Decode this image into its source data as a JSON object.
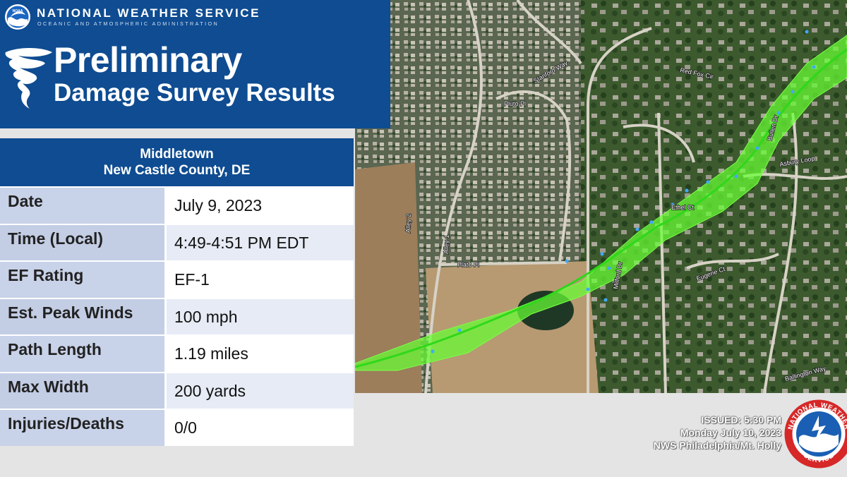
{
  "header": {
    "org_name": "NATIONAL WEATHER SERVICE",
    "org_sub": "OCEANIC AND ATMOSPHERIC ADMINISTRATION",
    "noaa_logo_text": "NOAA",
    "title_line1": "Preliminary",
    "title_line2": "Damage Survey Results"
  },
  "location": {
    "line1": "Middletown",
    "line2": "New Castle County, DE"
  },
  "details": [
    {
      "label": "Date",
      "value": "July 9, 2023"
    },
    {
      "label": "Time (Local)",
      "value": "4:49-4:51 PM EDT"
    },
    {
      "label": "EF Rating",
      "value": "EF-1"
    },
    {
      "label": "Est. Peak Winds",
      "value": "100 mph"
    },
    {
      "label": "Path Length",
      "value": "1.19 miles"
    },
    {
      "label": "Max Width",
      "value": "200 yards"
    },
    {
      "label": "Injuries/Deaths",
      "value": "0/0"
    }
  ],
  "issued": {
    "line1": "ISSUED: 5:30 PM",
    "line2": "Monday July 10, 2023",
    "line3": "NWS Philadelphia/Mt. Holly"
  },
  "nws_seal": {
    "top_text": "NATIONAL WEATHER",
    "bottom_text": "SERVICE"
  },
  "map": {
    "streets": [
      "Plato Pl",
      "Milford Dr",
      "Ethel Ct",
      "Bullen Dr",
      "Asbury Loop",
      "Eugene Ct",
      "Red Fox Cir",
      "Stanford Way",
      "Alley 1",
      "Alley 2",
      "Pluto Pl",
      "Ballington Way"
    ],
    "colors": {
      "track_fill": "#66ff33",
      "track_line": "#2fd81a",
      "damage_point": "#3fa9ff"
    }
  },
  "colors": {
    "nws_blue": "#0f4c91",
    "label_bg": "#c8d2e8"
  }
}
